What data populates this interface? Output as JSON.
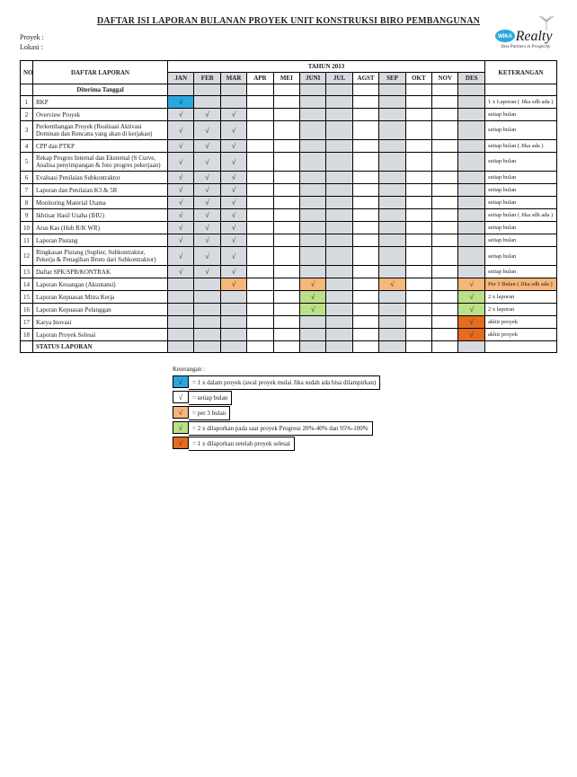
{
  "title": "DAFTAR ISI LAPORAN BULANAN PROYEK UNIT KONSTRUKSI BIRO PEMBANGUNAN",
  "meta": {
    "proyek_label": "Proyek  :",
    "lokasi_label": "Lokasi  :"
  },
  "logo": {
    "brand_oval": "WIKA",
    "brand_word": "Realty",
    "tagline": "Best Partners in Prosperity"
  },
  "headers": {
    "no": "NO",
    "daftar": "DAFTAR LAPORAN",
    "tahun": "TAHUN 2013",
    "ket": "KETERANGAN"
  },
  "months": [
    "JAN",
    "FEB",
    "MAR",
    "APR",
    "MEI",
    "JUNI",
    "JUL",
    "AGST",
    "SEP",
    "OKT",
    "NOV",
    "DES"
  ],
  "shaded_cols": [
    0,
    1,
    2,
    5,
    6,
    8,
    11
  ],
  "colors": {
    "shade": "#d7dbe0",
    "blue": "#2ba7df",
    "orange": "#f6b77a",
    "green": "#bcdf8a",
    "dark_orange": "#e46c1f"
  },
  "section1": "Diterima Tanggal",
  "rows": [
    {
      "no": "1",
      "desc": "RKP",
      "cells": [
        {
          "m": 0,
          "bg": "blue",
          "v": "√"
        }
      ],
      "ket": "1 x Laporan           (  Jika sdh ada )"
    },
    {
      "no": "2",
      "desc": "Overview Proyek",
      "cells": [
        {
          "m": 0,
          "v": "√"
        },
        {
          "m": 1,
          "v": "√"
        },
        {
          "m": 2,
          "v": "√"
        }
      ],
      "ket": "setiap bulan"
    },
    {
      "no": "3",
      "desc": "Perkembangan Proyek (Realisasi Aktivasi Dominan dan Rencana yang akan di kerjakan)",
      "cells": [
        {
          "m": 0,
          "v": "√"
        },
        {
          "m": 1,
          "v": "√"
        },
        {
          "m": 2,
          "v": "√"
        }
      ],
      "ket": "setiap bulan"
    },
    {
      "no": "4",
      "desc": "CPP dan PTKP",
      "cells": [
        {
          "m": 0,
          "v": "√"
        },
        {
          "m": 1,
          "v": "√"
        },
        {
          "m": 2,
          "v": "√"
        }
      ],
      "ket": "setiap bulan           (  Jika ada )"
    },
    {
      "no": "5",
      "desc": "Rekap Progres Internal dan Eksternal (S Curve, Analisa penyimpangan & foto progres pekerjaan)",
      "cells": [
        {
          "m": 0,
          "v": "√"
        },
        {
          "m": 1,
          "v": "√"
        },
        {
          "m": 2,
          "v": "√"
        }
      ],
      "ket": "setiap bulan"
    },
    {
      "no": "6",
      "desc": "Evaluasi Penilaian Subkontraktor",
      "cells": [
        {
          "m": 0,
          "v": "√"
        },
        {
          "m": 1,
          "v": "√"
        },
        {
          "m": 2,
          "v": "√"
        }
      ],
      "ket": "setiap bulan"
    },
    {
      "no": "7",
      "desc": "Laporan dan Penilaian K3 & 5R",
      "cells": [
        {
          "m": 0,
          "v": "√"
        },
        {
          "m": 1,
          "v": "√"
        },
        {
          "m": 2,
          "v": "√"
        }
      ],
      "ket": "setiap bulan"
    },
    {
      "no": "8",
      "desc": "Monitoring Material Utama",
      "cells": [
        {
          "m": 0,
          "v": "√"
        },
        {
          "m": 1,
          "v": "√"
        },
        {
          "m": 2,
          "v": "√"
        }
      ],
      "ket": "setiap bulan"
    },
    {
      "no": "9",
      "desc": "Ikhtisar Hasil Usaha (IHU)",
      "cells": [
        {
          "m": 0,
          "v": "√"
        },
        {
          "m": 1,
          "v": "√"
        },
        {
          "m": 2,
          "v": "√"
        }
      ],
      "ket": "setiap bulan           (  Jika sdh ada )"
    },
    {
      "no": "10",
      "desc": "Arus Kas (Hub R/K WR)",
      "cells": [
        {
          "m": 0,
          "v": "√"
        },
        {
          "m": 1,
          "v": "√"
        },
        {
          "m": 2,
          "v": "√"
        }
      ],
      "ket": "setiap bulan"
    },
    {
      "no": "11",
      "desc": "Laporan Piutang",
      "cells": [
        {
          "m": 0,
          "v": "√"
        },
        {
          "m": 1,
          "v": "√"
        },
        {
          "m": 2,
          "v": "√"
        }
      ],
      "ket": "setiap bulan"
    },
    {
      "no": "12",
      "desc": "Ringkasan Piutang (Suplier, Subkontraktor, Pekerja & Penagihan Bruto dari Subkontraktor)",
      "cells": [
        {
          "m": 0,
          "v": "√"
        },
        {
          "m": 1,
          "v": "√"
        },
        {
          "m": 2,
          "v": "√"
        }
      ],
      "ket": "setiap bulan"
    },
    {
      "no": "13",
      "desc": "Daftar SPK/SPB/KONTRAK",
      "cells": [
        {
          "m": 0,
          "v": "√"
        },
        {
          "m": 1,
          "v": "√"
        },
        {
          "m": 2,
          "v": "√"
        }
      ],
      "ket": "setiap bulan"
    },
    {
      "no": "14",
      "desc": "Laporan Keuangan (Akuntansi)",
      "cells": [
        {
          "m": 2,
          "bg": "orange",
          "v": "√"
        },
        {
          "m": 5,
          "bg": "orange",
          "v": "√"
        },
        {
          "m": 8,
          "bg": "orange",
          "v": "√"
        },
        {
          "m": 11,
          "bg": "orange",
          "v": "√"
        }
      ],
      "ket": "Per 3 Bulan           ( Jika sdh ada )",
      "ket_bg": "orange"
    },
    {
      "no": "15",
      "desc": "Laporan Kepuasan Mitra Kerja",
      "cells": [
        {
          "m": 5,
          "bg": "green",
          "v": "√"
        },
        {
          "m": 11,
          "bg": "green",
          "v": "√"
        }
      ],
      "ket": "2 x laporan"
    },
    {
      "no": "16",
      "desc": "Laporan Kepuasan Pelanggan",
      "cells": [
        {
          "m": 5,
          "bg": "green",
          "v": "√"
        },
        {
          "m": 11,
          "bg": "green",
          "v": "√"
        }
      ],
      "ket": "2 x laporan"
    },
    {
      "no": "17",
      "desc": "Karya Inovasi",
      "cells": [
        {
          "m": 11,
          "bg": "dark_orange",
          "v": "√"
        }
      ],
      "ket": "akhir proyek"
    },
    {
      "no": "18",
      "desc": "Laporan Proyek Selesai",
      "cells": [
        {
          "m": 11,
          "bg": "dark_orange",
          "v": "√"
        }
      ],
      "ket": "akhir proyek"
    }
  ],
  "status_row": "STATUS LAPORAN",
  "legend": {
    "title": "Keterangan :",
    "items": [
      {
        "bg": "blue",
        "mark": "√",
        "text": "= 1 x dalam proyek (awal proyek mulai Jika sudah ada bisa dilampirkan)"
      },
      {
        "bg": "",
        "mark": "√",
        "text": "= setiap bulan"
      },
      {
        "bg": "orange",
        "mark": "√",
        "text": "= per 3  bulan"
      },
      {
        "bg": "green",
        "mark": "√",
        "text": "= 2 x dilaporkan pada saat proyek Progress 20%-40% dan 95%-100%"
      },
      {
        "bg": "dark_orange",
        "mark": "√",
        "text": "= 1 x dilaporkan setelah proyek selesai"
      }
    ]
  }
}
